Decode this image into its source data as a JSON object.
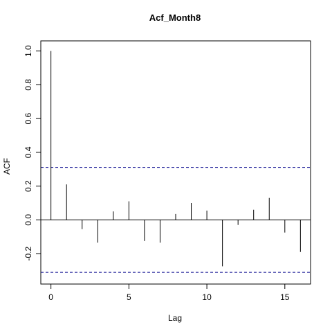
{
  "chart_data": {
    "type": "bar",
    "title": "Acf_Month8",
    "xlabel": "Lag",
    "ylabel": "ACF",
    "xlim": [
      -0.65,
      16.65
    ],
    "ylim": [
      -0.38,
      1.06
    ],
    "x_ticks": [
      0,
      5,
      10,
      15
    ],
    "x_tick_labels": [
      "0",
      "5",
      "10",
      "15"
    ],
    "y_ticks": [
      -0.2,
      0.0,
      0.2,
      0.4,
      0.6,
      0.8,
      1.0
    ],
    "y_tick_labels": [
      "-0.2",
      "0.0",
      "0.2",
      "0.4",
      "0.6",
      "0.8",
      "1.0"
    ],
    "lags": [
      0,
      1,
      2,
      3,
      4,
      5,
      6,
      7,
      8,
      9,
      10,
      11,
      12,
      13,
      14,
      15,
      16
    ],
    "values": [
      1.0,
      0.21,
      -0.055,
      -0.135,
      0.05,
      0.11,
      -0.125,
      -0.135,
      0.035,
      0.1,
      0.055,
      -0.275,
      -0.03,
      0.06,
      0.13,
      -0.075,
      -0.19
    ],
    "confidence_bound": 0.311,
    "confidence_color": "#00008b",
    "bar_color": "#000000",
    "grid": false,
    "legend": "none"
  }
}
